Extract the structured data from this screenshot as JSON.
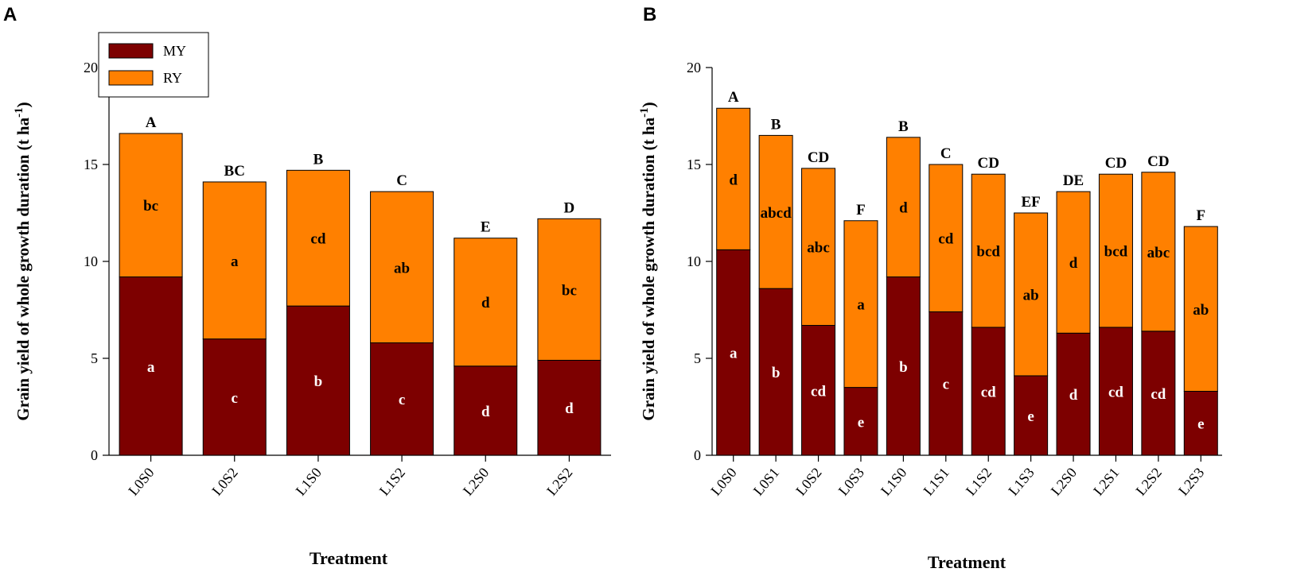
{
  "chart_data": [
    {
      "panel_label": "A",
      "type": "bar",
      "stacked": true,
      "title": "",
      "xlabel": "Treatment",
      "ylabel": "Grain yield of whole growth duration (t ha",
      "ylabel_sup": "-1",
      "ylabel_close": ")",
      "ylim": [
        0,
        20
      ],
      "yticks": [
        0,
        5,
        10,
        15,
        20
      ],
      "legend": {
        "position": "top-left",
        "entries": [
          "MY",
          "RY"
        ]
      },
      "categories": [
        "L0S0",
        "L0S2",
        "L1S0",
        "L1S2",
        "L2S0",
        "L2S2"
      ],
      "series": [
        {
          "name": "MY",
          "color": "#7d0000",
          "values": [
            9.2,
            6.0,
            7.7,
            5.8,
            4.6,
            4.9
          ],
          "letters": [
            "a",
            "c",
            "b",
            "c",
            "d",
            "d"
          ]
        },
        {
          "name": "RY",
          "color": "#ff8000",
          "values": [
            7.4,
            8.1,
            7.0,
            7.8,
            6.6,
            7.3
          ],
          "letters": [
            "bc",
            "a",
            "cd",
            "ab",
            "d",
            "bc"
          ]
        }
      ],
      "total_letters": [
        "A",
        "BC",
        "B",
        "C",
        "E",
        "D"
      ]
    },
    {
      "panel_label": "B",
      "type": "bar",
      "stacked": true,
      "title": "",
      "xlabel": "Treatment",
      "ylabel": "Grain yield of whole growth duration (t ha",
      "ylabel_sup": "-1",
      "ylabel_close": ")",
      "ylim": [
        0,
        20
      ],
      "yticks": [
        0,
        5,
        10,
        15,
        20
      ],
      "categories": [
        "L0S0",
        "L0S1",
        "L0S2",
        "L0S3",
        "L1S0",
        "L1S1",
        "L1S2",
        "L1S3",
        "L2S0",
        "L2S1",
        "L2S2",
        "L2S3"
      ],
      "series": [
        {
          "name": "MY",
          "color": "#7d0000",
          "values": [
            10.6,
            8.6,
            6.7,
            3.5,
            9.2,
            7.4,
            6.6,
            4.1,
            6.3,
            6.6,
            6.4,
            3.3
          ],
          "letters": [
            "a",
            "b",
            "cd",
            "e",
            "b",
            "c",
            "cd",
            "e",
            "d",
            "cd",
            "cd",
            "e"
          ]
        },
        {
          "name": "RY",
          "color": "#ff8000",
          "values": [
            7.3,
            7.9,
            8.1,
            8.6,
            7.2,
            7.6,
            7.9,
            8.4,
            7.3,
            7.9,
            8.2,
            8.5
          ],
          "letters": [
            "d",
            "abcd",
            "abc",
            "a",
            "d",
            "cd",
            "bcd",
            "ab",
            "d",
            "bcd",
            "abc",
            "ab"
          ]
        }
      ],
      "total_letters": [
        "A",
        "B",
        "CD",
        "F",
        "B",
        "C",
        "CD",
        "EF",
        "DE",
        "CD",
        "CD",
        "F"
      ]
    }
  ]
}
